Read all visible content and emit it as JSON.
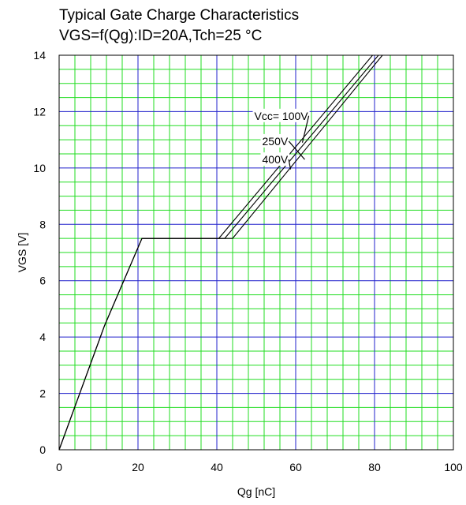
{
  "chart_data": {
    "type": "line",
    "title": "Typical Gate Charge Characteristics",
    "subtitle": "VGS=f(Qg):ID=20A,Tch=25 °C",
    "xlabel": "Qg [nC]",
    "ylabel": "VGS [V]",
    "xlim": [
      0,
      100
    ],
    "ylim": [
      0,
      14
    ],
    "x_ticks": [
      "0",
      "20",
      "40",
      "60",
      "80",
      "100"
    ],
    "y_ticks": [
      "0",
      "2",
      "4",
      "6",
      "8",
      "10",
      "12",
      "14"
    ],
    "grid": true,
    "colors": {
      "major_grid": "#2222cc",
      "minor_grid": "#22dd22",
      "line": "#000000",
      "text_bg": "#ffffff"
    },
    "series": [
      {
        "name": "Vcc= 100V",
        "points": [
          [
            0,
            0
          ],
          [
            11.5,
            4.4
          ],
          [
            21,
            7.5
          ],
          [
            40.5,
            7.5
          ],
          [
            79.5,
            14.0
          ]
        ]
      },
      {
        "name": "250V",
        "points": [
          [
            0,
            0
          ],
          [
            11.5,
            4.4
          ],
          [
            21,
            7.5
          ],
          [
            42,
            7.5
          ],
          [
            81,
            14.0
          ]
        ]
      },
      {
        "name": "400V",
        "points": [
          [
            0,
            0
          ],
          [
            11.5,
            4.4
          ],
          [
            21,
            7.5
          ],
          [
            44,
            7.5
          ],
          [
            82,
            14.0
          ]
        ]
      }
    ],
    "annotations": [
      {
        "series": 0,
        "text": "Vcc= 100V",
        "anchor": [
          49.5,
          11.85
        ],
        "target": [
          61.7,
          10.9
        ]
      },
      {
        "series": 1,
        "text": "250V",
        "anchor": [
          51.5,
          10.95
        ],
        "target": [
          62.3,
          10.3
        ]
      },
      {
        "series": 2,
        "text": "400V",
        "anchor": [
          51.5,
          10.3
        ],
        "target": [
          58.7,
          9.95
        ]
      }
    ]
  }
}
